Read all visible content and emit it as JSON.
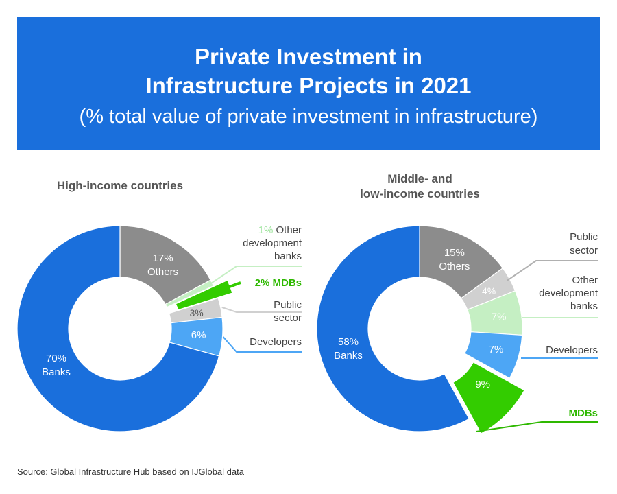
{
  "header": {
    "title_line1": "Private Investment in",
    "title_line2": "Infrastructure Projects in 2021",
    "subtitle": "(% total value of private investment in infrastructure)"
  },
  "colors": {
    "banner": "#1a6fdc",
    "banks": "#1a6fdc",
    "others": "#8c8c8c",
    "public_sector": "#d0d0d0",
    "other_dev_banks": "#c5efc3",
    "mdbs": "#33cc00",
    "developers": "#4da6f5"
  },
  "chart_data": [
    {
      "type": "donut",
      "title": "High-income countries",
      "slices": [
        {
          "name": "Others",
          "value": 17,
          "value_label": "17%",
          "name_label": "Others"
        },
        {
          "name": "Other development banks",
          "value": 1,
          "value_label": "1%",
          "name_label": "Other development banks",
          "callout_lines": [
            "Other",
            "development",
            "banks"
          ]
        },
        {
          "name": "MDBs",
          "value": 2,
          "value_label": "2%",
          "name_label": "MDBs",
          "callout_text": "2% MDBs",
          "exploded": true
        },
        {
          "name": "Public sector",
          "value": 3,
          "value_label": "3%",
          "name_label": "Public sector",
          "callout_lines": [
            "Public",
            "sector"
          ]
        },
        {
          "name": "Developers",
          "value": 6,
          "value_label": "6%",
          "name_label": "Developers",
          "callout_lines": [
            "Developers"
          ]
        },
        {
          "name": "Banks",
          "value": 70,
          "value_label": "70%",
          "name_label": "Banks"
        }
      ]
    },
    {
      "type": "donut",
      "title": "Middle- and low-income countries",
      "title_lines": [
        "Middle- and",
        "low-income countries"
      ],
      "slices": [
        {
          "name": "Others",
          "value": 15,
          "value_label": "15%",
          "name_label": "Others"
        },
        {
          "name": "Public sector",
          "value": 4,
          "value_label": "4%",
          "callout_lines": [
            "Public",
            "sector"
          ]
        },
        {
          "name": "Other development banks",
          "value": 7,
          "value_label": "7%",
          "callout_lines": [
            "Other",
            "development",
            "banks"
          ]
        },
        {
          "name": "Developers",
          "value": 7,
          "value_label": "7%",
          "callout_lines": [
            "Developers"
          ]
        },
        {
          "name": "MDBs",
          "value": 9,
          "value_label": "9%",
          "callout_lines": [
            "MDBs"
          ],
          "exploded": true
        },
        {
          "name": "Banks",
          "value": 58,
          "value_label": "58%",
          "name_label": "Banks"
        }
      ]
    }
  ],
  "source": "Source: Global Infrastructure Hub based on IJGlobal data"
}
